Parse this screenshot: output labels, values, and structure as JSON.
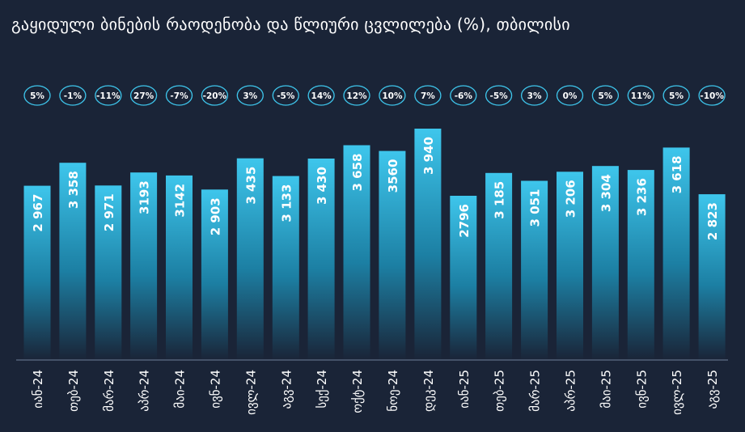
{
  "title": "გაყიდული ბინების რაოდენობა და წლიური ცვლილება (%), თბილისი",
  "colors": {
    "background": "#1a2437",
    "bar_top": "#3ec6ec",
    "bar_bottom": "#1a2437",
    "badge_border": "#3ec6ec",
    "text": "#ffffff"
  },
  "chart_data": {
    "type": "bar",
    "title": "გაყიდული ბინების რაოდენობა და წლიური ცვლილება (%), თბილისი",
    "xlabel": "",
    "ylabel": "",
    "ylim": [
      0,
      4000
    ],
    "grid": false,
    "categories": [
      "იან-24",
      "თებ-24",
      "მარ-24",
      "აპრ-24",
      "მაი-24",
      "ივნ-24",
      "ივლ-24",
      "აგვ-24",
      "სექ-24",
      "ოქტ-24",
      "ნოე-24",
      "დეკ-24",
      "იან-25",
      "თებ-25",
      "მარ-25",
      "აპრ-25",
      "მაი-25",
      "ივნ-25",
      "ივლ-25",
      "აგვ-25"
    ],
    "values": [
      2967,
      3358,
      2971,
      3193,
      3142,
      2903,
      3435,
      3133,
      3430,
      3658,
      3560,
      3940,
      2796,
      3185,
      3051,
      3206,
      3304,
      3236,
      3618,
      2823
    ],
    "value_labels": [
      "2 967",
      "3 358",
      "2 971",
      "3193",
      "3142",
      "2 903",
      "3 435",
      "3 133",
      "3 430",
      "3 658",
      "3560",
      "3 940",
      "2796",
      "3 185",
      "3 051",
      "3 206",
      "3 304",
      "3 236",
      "3 618",
      "2 823"
    ],
    "yoy_change_labels": [
      "5%",
      "-1%",
      "-11%",
      "27%",
      "-7%",
      "-20%",
      "3%",
      "-5%",
      "14%",
      "12%",
      "10%",
      "7%",
      "-6%",
      "-5%",
      "3%",
      "0%",
      "5%",
      "11%",
      "5%",
      "-10%"
    ]
  }
}
